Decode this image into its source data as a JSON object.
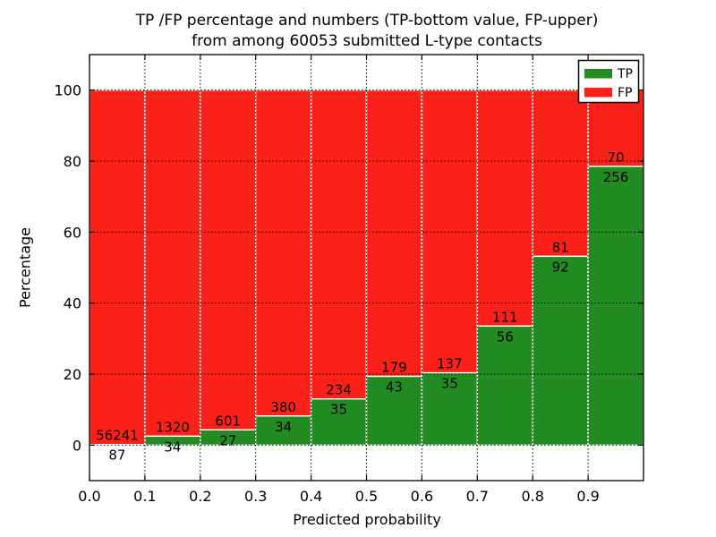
{
  "chart_data": {
    "type": "bar",
    "stacked": true,
    "percent_total": 100,
    "title_line1": "TP /FP percentage and numbers (TP-bottom value, FP-upper)",
    "title_line2": "from among 60053 submitted L-type contacts",
    "xlabel": "Predicted probability",
    "ylabel": "Percentage",
    "xlim": [
      0.0,
      1.0
    ],
    "ylim": [
      -10,
      110
    ],
    "x_tick_labels": [
      "0.0",
      "0.1",
      "0.2",
      "0.3",
      "0.4",
      "0.5",
      "0.6",
      "0.7",
      "0.8",
      "0.9"
    ],
    "y_ticks": [
      0,
      20,
      40,
      60,
      80,
      100
    ],
    "grid": true,
    "grid_style": "dotted",
    "legend": {
      "position": "upper right",
      "entries": [
        {
          "label": "TP",
          "color": "#228b22"
        },
        {
          "label": "FP",
          "color": "#fb2119"
        }
      ]
    },
    "bins": [
      {
        "range_start": 0.0,
        "tp": 87,
        "fp": 56241,
        "tp_percent": 0.15
      },
      {
        "range_start": 0.1,
        "tp": 34,
        "fp": 1320,
        "tp_percent": 2.51
      },
      {
        "range_start": 0.2,
        "tp": 27,
        "fp": 601,
        "tp_percent": 4.3
      },
      {
        "range_start": 0.3,
        "tp": 34,
        "fp": 380,
        "tp_percent": 8.21
      },
      {
        "range_start": 0.4,
        "tp": 35,
        "fp": 234,
        "tp_percent": 13.01
      },
      {
        "range_start": 0.5,
        "tp": 43,
        "fp": 179,
        "tp_percent": 19.37
      },
      {
        "range_start": 0.6,
        "tp": 35,
        "fp": 137,
        "tp_percent": 20.35
      },
      {
        "range_start": 0.7,
        "tp": 56,
        "fp": 111,
        "tp_percent": 33.53
      },
      {
        "range_start": 0.8,
        "tp": 92,
        "fp": 81,
        "tp_percent": 53.18
      },
      {
        "range_start": 0.9,
        "tp": 256,
        "fp": 70,
        "tp_percent": 78.53
      }
    ]
  }
}
